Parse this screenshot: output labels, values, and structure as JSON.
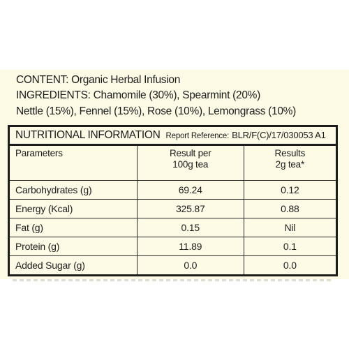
{
  "info": {
    "content": "CONTENT: Organic Herbal Infusion",
    "ingredients_line1": "INGREDIENTS: Chamomile (30%), Spearmint (20%)",
    "ingredients_line2": "Nettle (15%), Fennel (15%), Rose (10%), Lemongrass (10%)"
  },
  "table": {
    "title": "NUTRITIONAL INFORMATION",
    "report_label": "Report Reference:",
    "report_code": "BLR/F(C)/17/030053 A1",
    "headers": {
      "parameters": "Parameters",
      "result_per_line1": "Result per",
      "result_per_line2": "100g tea",
      "results_line1": "Results",
      "results_line2": "2g tea*"
    },
    "rows": [
      {
        "parameter": "Carbohydrates (g)",
        "per100g": "69.24",
        "per2g": "0.12"
      },
      {
        "parameter": "Energy (Kcal)",
        "per100g": "325.87",
        "per2g": "0.88"
      },
      {
        "parameter": "Fat (g)",
        "per100g": "0.15",
        "per2g": "Nil"
      },
      {
        "parameter": "Protein (g)",
        "per100g": "11.89",
        "per2g": "0.1"
      },
      {
        "parameter": "Added Sugar (g)",
        "per100g": "0.0",
        "per2g": "0.0"
      }
    ]
  },
  "colors": {
    "panel_background": "#fdfbe6",
    "text": "#1c1c1c",
    "border": "#1c1c1c"
  }
}
